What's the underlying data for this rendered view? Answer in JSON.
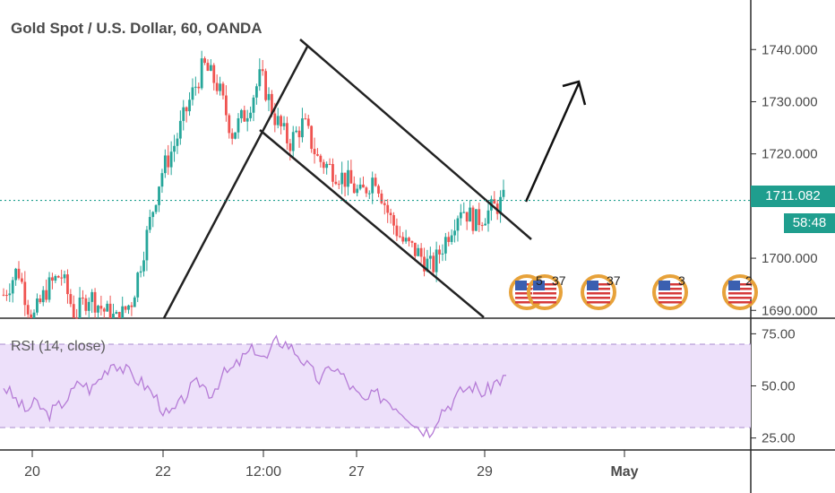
{
  "header": {
    "title": "Gold Spot / U.S. Dollar, 60, OANDA"
  },
  "rsi": {
    "title": "RSI (14, close)"
  },
  "price_scale": {
    "ticks": [
      "1740.000",
      "1730.000",
      "1720.000",
      "1700.000",
      "1690.000"
    ],
    "current_price": "1711.082",
    "countdown": "58:48"
  },
  "rsi_scale": {
    "ticks": [
      "75.00",
      "50.00",
      "25.00"
    ]
  },
  "time_axis": {
    "ticks": [
      "20",
      "22",
      "12:00",
      "27",
      "29",
      "May"
    ]
  },
  "events": [
    "5",
    "37",
    "37",
    "3",
    "2"
  ],
  "colors": {
    "up": "#26a69a",
    "down": "#ef5350",
    "rsi_line": "#b57bd6",
    "rsi_band": "#ede0fa",
    "price_line": "#1f9e8e"
  },
  "chart_data": [
    {
      "type": "candlestick",
      "title": "Gold Spot / U.S. Dollar, 60, OANDA",
      "ylim": [
        1687,
        1747
      ],
      "current_price": 1711.082,
      "x_labels": [
        "20",
        "22",
        "12:00",
        "27",
        "29",
        "May"
      ],
      "approx_close_path": [
        1693,
        1698,
        1688,
        1694,
        1697,
        1689,
        1693,
        1690,
        1688,
        1692,
        1704,
        1716,
        1722,
        1730,
        1737,
        1733,
        1724,
        1728,
        1735,
        1727,
        1722,
        1726,
        1719,
        1717,
        1715,
        1712,
        1716,
        1708,
        1703,
        1701,
        1698,
        1704,
        1710,
        1707,
        1709,
        1711
      ]
    },
    {
      "type": "line",
      "title": "RSI (14, close)",
      "ylim": [
        20,
        80
      ],
      "bands": [
        30,
        70
      ],
      "approx_values": [
        50,
        44,
        38,
        42,
        36,
        40,
        45,
        52,
        48,
        55,
        62,
        58,
        54,
        50,
        44,
        35,
        40,
        48,
        52,
        46,
        55,
        58,
        64,
        68,
        62,
        72,
        70,
        65,
        58,
        52,
        60,
        55,
        48,
        42,
        46,
        44,
        40,
        36,
        30,
        28,
        38,
        42,
        48,
        50,
        46,
        52,
        54
      ]
    }
  ]
}
